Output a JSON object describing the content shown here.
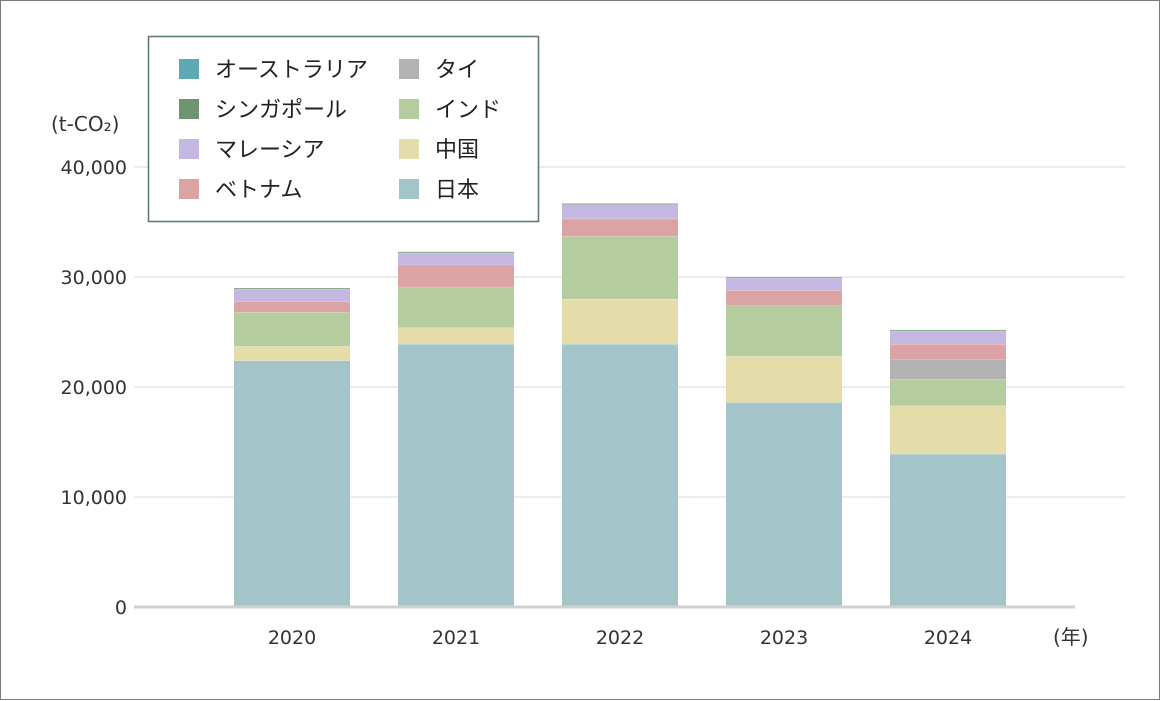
{
  "chart_data": {
    "type": "bar",
    "stacked": true,
    "y_unit_label": "(t-CO₂)",
    "x_unit_label": "(年)",
    "categories": [
      "2020",
      "2021",
      "2022",
      "2023",
      "2024"
    ],
    "ylim": [
      0,
      50000
    ],
    "yticks": [
      0,
      10000,
      20000,
      30000,
      40000
    ],
    "ytick_labels": [
      "0",
      "10,000",
      "20,000",
      "30,000",
      "40,000"
    ],
    "grid": true,
    "legend_position": "top-left",
    "legend_order": [
      "オーストラリア",
      "シンガポール",
      "マレーシア",
      "ベトナム",
      "タイ",
      "インド",
      "中国",
      "日本"
    ],
    "series": [
      {
        "name": "日本",
        "color": "#a3c5ca",
        "values": [
          22400,
          23900,
          23900,
          18600,
          13900
        ]
      },
      {
        "name": "中国",
        "color": "#e5dda9",
        "values": [
          1300,
          1500,
          4100,
          4200,
          4400
        ]
      },
      {
        "name": "インド",
        "color": "#b5cc9e",
        "values": [
          3100,
          3700,
          5700,
          4600,
          2400
        ]
      },
      {
        "name": "タイ",
        "color": "#b2b2b2",
        "values": [
          0,
          0,
          0,
          0,
          1800
        ]
      },
      {
        "name": "ベトナム",
        "color": "#dba3a3",
        "values": [
          1000,
          2000,
          1600,
          1400,
          1400
        ]
      },
      {
        "name": "マレーシア",
        "color": "#c4b8e2",
        "values": [
          1100,
          1100,
          1300,
          1100,
          1200
        ]
      },
      {
        "name": "シンガポール",
        "color": "#6d9670",
        "values": [
          100,
          100,
          100,
          100,
          100
        ]
      },
      {
        "name": "オーストラリア",
        "color": "#5fa9b4",
        "values": [
          0,
          0,
          0,
          0,
          0
        ]
      }
    ]
  }
}
